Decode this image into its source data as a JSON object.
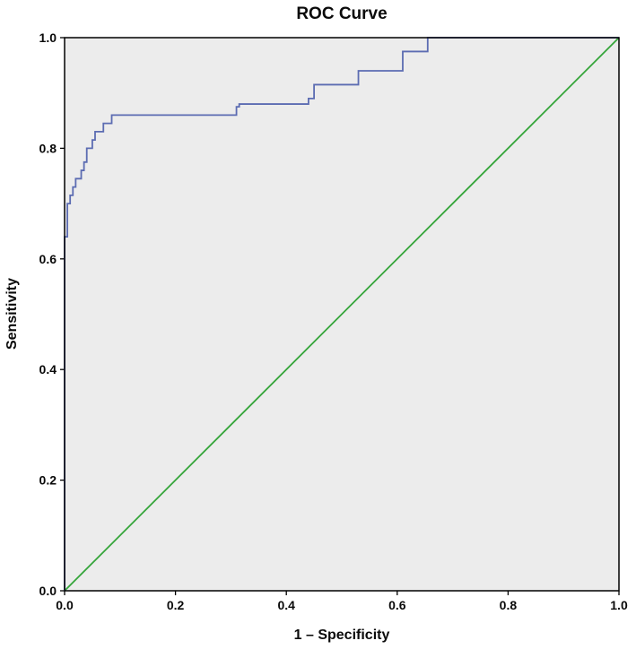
{
  "chart_data": {
    "type": "line",
    "title": "ROC Curve",
    "xlabel": "1 – Specificity",
    "ylabel": "Sensitivity",
    "xlim": [
      0,
      1
    ],
    "ylim": [
      0,
      1
    ],
    "xticks": [
      "0.0",
      "0.2",
      "0.4",
      "0.6",
      "0.8",
      "1.0"
    ],
    "yticks": [
      "0.0",
      "0.2",
      "0.4",
      "0.6",
      "0.8",
      "1.0"
    ],
    "grid": false,
    "legend": "none",
    "colors": {
      "plot_background": "#ececec",
      "axis": "#000000",
      "roc_curve": "#5c6cb2",
      "reference_line": "#35a53a"
    },
    "series": [
      {
        "name": "ROC curve",
        "color": "#5c6cb2",
        "style": "step",
        "points": [
          [
            0.0,
            0.0
          ],
          [
            0.0,
            0.64
          ],
          [
            0.005,
            0.64
          ],
          [
            0.005,
            0.7
          ],
          [
            0.01,
            0.7
          ],
          [
            0.01,
            0.715
          ],
          [
            0.015,
            0.715
          ],
          [
            0.015,
            0.73
          ],
          [
            0.02,
            0.73
          ],
          [
            0.02,
            0.745
          ],
          [
            0.03,
            0.745
          ],
          [
            0.03,
            0.76
          ],
          [
            0.035,
            0.76
          ],
          [
            0.035,
            0.775
          ],
          [
            0.04,
            0.775
          ],
          [
            0.04,
            0.8
          ],
          [
            0.05,
            0.8
          ],
          [
            0.05,
            0.815
          ],
          [
            0.055,
            0.815
          ],
          [
            0.055,
            0.83
          ],
          [
            0.07,
            0.83
          ],
          [
            0.07,
            0.845
          ],
          [
            0.085,
            0.845
          ],
          [
            0.085,
            0.86
          ],
          [
            0.31,
            0.86
          ],
          [
            0.31,
            0.875
          ],
          [
            0.315,
            0.875
          ],
          [
            0.315,
            0.88
          ],
          [
            0.44,
            0.88
          ],
          [
            0.44,
            0.89
          ],
          [
            0.45,
            0.89
          ],
          [
            0.45,
            0.915
          ],
          [
            0.53,
            0.915
          ],
          [
            0.53,
            0.94
          ],
          [
            0.61,
            0.94
          ],
          [
            0.61,
            0.975
          ],
          [
            0.655,
            0.975
          ],
          [
            0.655,
            1.0
          ],
          [
            1.0,
            1.0
          ]
        ]
      },
      {
        "name": "Reference line",
        "color": "#35a53a",
        "style": "straight",
        "points": [
          [
            0.0,
            0.0
          ],
          [
            1.0,
            1.0
          ]
        ]
      }
    ]
  }
}
